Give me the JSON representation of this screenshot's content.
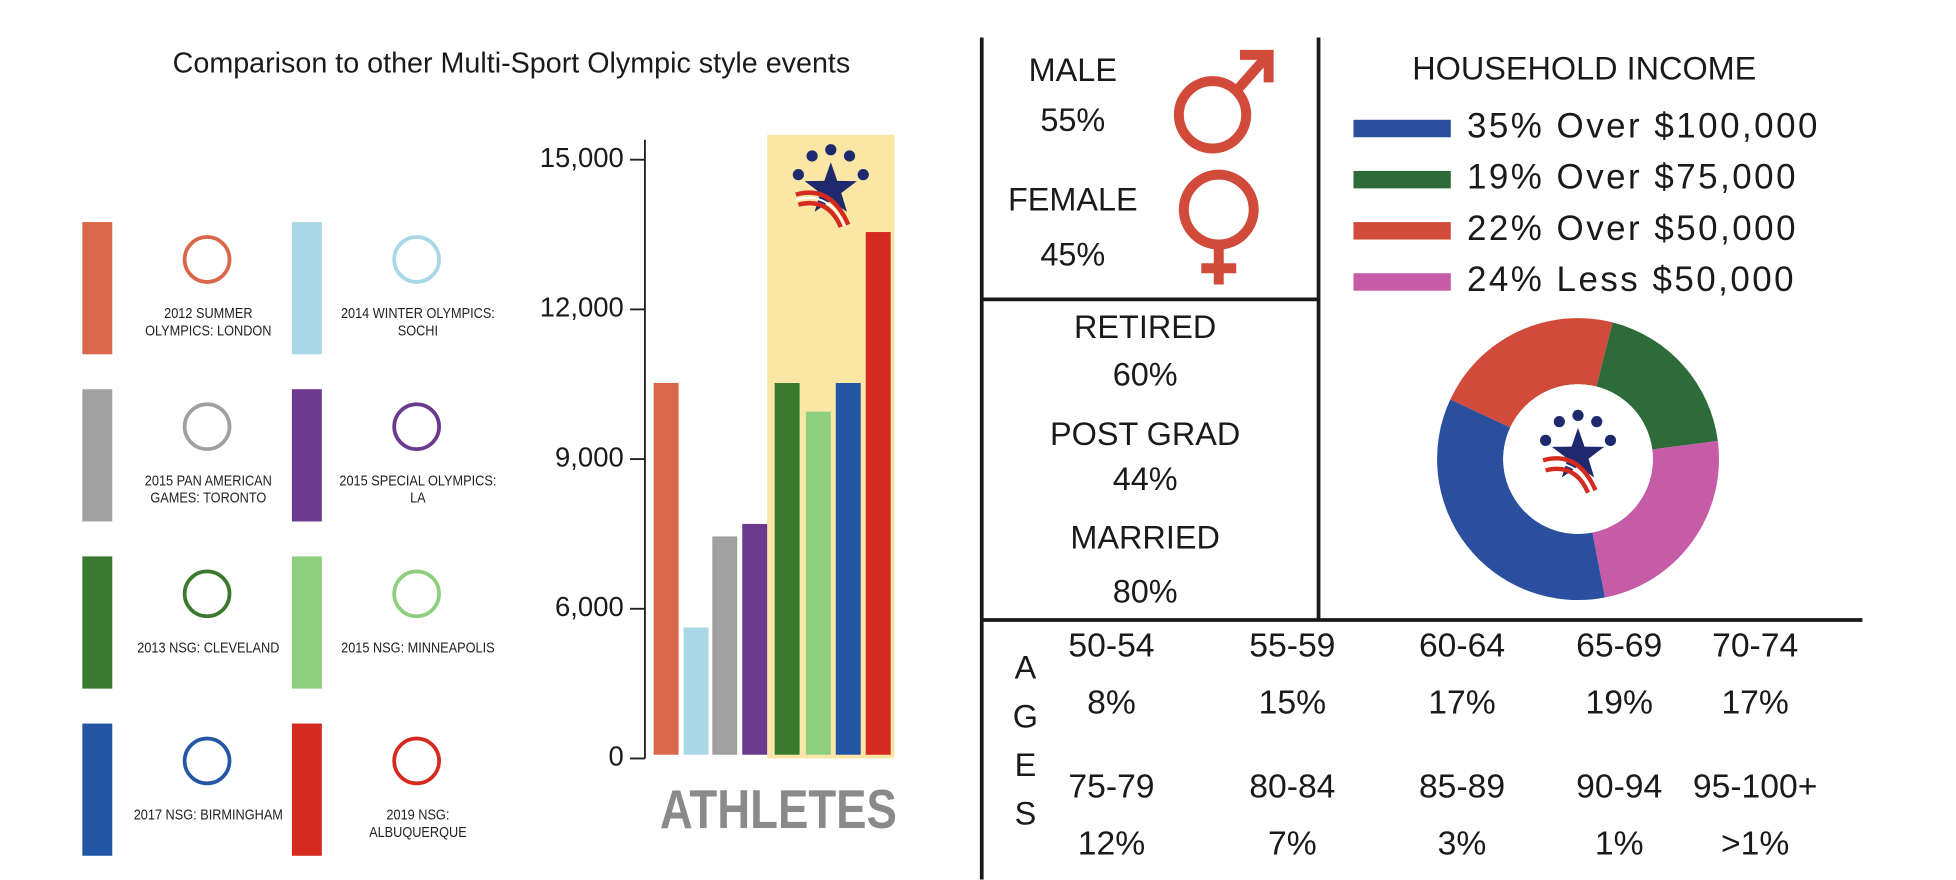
{
  "chart_data": [
    {
      "type": "bar",
      "title": "Comparison to other Multi-Sport Olympic style events",
      "x_label": "ATHLETES",
      "categories": [
        "2012 SUMMER OLYMPICS: LONDON",
        "2014 WINTER OLYMPICS: SOCHI",
        "2015 PAN AMERICAN GAMES: TORONTO",
        "2015 SPECIAL OLYMPICS: LA",
        "2013 NSG: CLEVELAND",
        "2015 NSG: MINNEAPOLIS",
        "2017 NSG: BIRMINGHAM",
        "2019 NSG: ALBUQUERQUE"
      ],
      "values": [
        10525,
        5250,
        7450,
        7700,
        10525,
        9950,
        10525,
        13550
      ],
      "colors": [
        "#d9684a",
        "#a8d8e6",
        "#a0a0a0",
        "#6b3a8f",
        "#3a7a2e",
        "#8ecf7f",
        "#2456a6",
        "#d42a20"
      ],
      "ylim": [
        0,
        15500
      ],
      "yticks": [
        0,
        {
          "value": 6000,
          "label": "6,000"
        },
        {
          "value": 9000,
          "label": "9,000"
        },
        {
          "value": 12000,
          "label": "12,000"
        },
        {
          "value": 15000,
          "label": "15,000"
        }
      ]
    },
    {
      "type": "pie",
      "title": "HOUSEHOLD INCOME",
      "categories": [
        "Over $100,000",
        "Over $75,000",
        "Over $50,000",
        "Less $50,000"
      ],
      "values": [
        35,
        19,
        22,
        24
      ],
      "value_labels": [
        "35%",
        "19%",
        "22%",
        "24%"
      ],
      "colors": [
        "#2b4f9e",
        "#2e6b3a",
        "#d24a3a",
        "#c65ba8"
      ]
    }
  ],
  "gender": {
    "male": "MALE",
    "male_percent": "55%",
    "female": "FEMALE",
    "female_percent": "45%"
  },
  "stats": [
    {
      "label": "RETIRED",
      "percent": "60%"
    },
    {
      "label": "POST GRAD",
      "percent": "44%"
    },
    {
      "label": "MARRIED",
      "percent": "80%"
    }
  ],
  "ages": {
    "label": "AGES",
    "groups": [
      {
        "range": "50-54",
        "percent": "8%"
      },
      {
        "range": "55-59",
        "percent": "15%"
      },
      {
        "range": "60-64",
        "percent": "17%"
      },
      {
        "range": "65-69",
        "percent": "19%"
      },
      {
        "range": "70-74",
        "percent": "17%"
      },
      {
        "range": "75-79",
        "percent": "12%"
      },
      {
        "range": "80-84",
        "percent": "7%"
      },
      {
        "range": "85-89",
        "percent": "3%"
      },
      {
        "range": "90-94",
        "percent": "1%"
      },
      {
        "range": "95-100+",
        "percent": ">1%"
      }
    ]
  }
}
